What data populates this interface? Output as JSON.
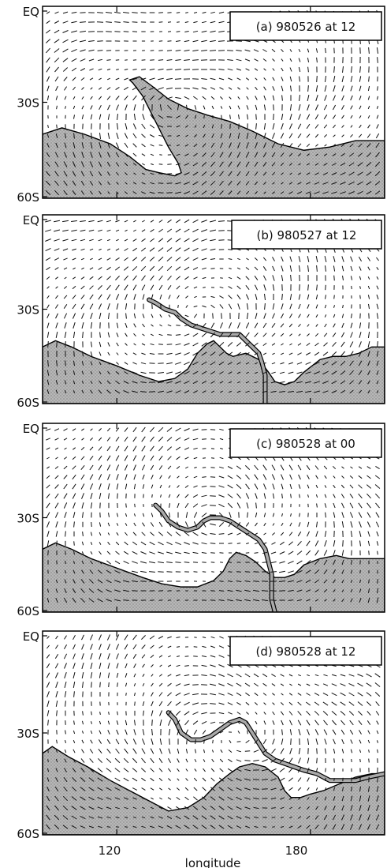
{
  "chart_data": {
    "type": "vector-field-panels",
    "xlabel": "longitude",
    "x_ticks": [
      120,
      180
    ],
    "y_ticks": [
      "EQ",
      "30S",
      "60S"
    ],
    "x_range": [
      97,
      203
    ],
    "y_range": [
      0,
      60
    ],
    "panels": [
      {
        "id": "a",
        "label": "(a) 980526 at 12",
        "boundary": [
          [
            97,
            40
          ],
          [
            103,
            38
          ],
          [
            110,
            40
          ],
          [
            118,
            43
          ],
          [
            124,
            47
          ],
          [
            129,
            51
          ],
          [
            133,
            52
          ],
          [
            138,
            53
          ],
          [
            140,
            52
          ],
          [
            139,
            49
          ],
          [
            136,
            44
          ],
          [
            132,
            36
          ],
          [
            128,
            28
          ],
          [
            125,
            24
          ],
          [
            124,
            23
          ],
          [
            127,
            22
          ],
          [
            131,
            25
          ],
          [
            136,
            29
          ],
          [
            142,
            32
          ],
          [
            148,
            34
          ],
          [
            155,
            36
          ],
          [
            162,
            39
          ],
          [
            170,
            43
          ],
          [
            178,
            45
          ],
          [
            186,
            44
          ],
          [
            194,
            42
          ],
          [
            203,
            42
          ]
        ]
      },
      {
        "id": "b",
        "label": "(b) 980527 at 12",
        "boundary": [
          [
            97,
            42
          ],
          [
            101,
            40
          ],
          [
            106,
            42
          ],
          [
            112,
            45
          ],
          [
            120,
            48
          ],
          [
            127,
            51
          ],
          [
            133,
            53
          ],
          [
            138,
            52
          ],
          [
            142,
            49
          ],
          [
            145,
            44
          ],
          [
            148,
            41
          ],
          [
            150,
            40
          ],
          [
            152,
            42
          ],
          [
            154,
            44
          ],
          [
            156,
            45
          ],
          [
            160,
            44
          ],
          [
            164,
            46
          ],
          [
            167,
            50
          ],
          [
            169,
            53
          ],
          [
            172,
            54
          ],
          [
            175,
            53
          ],
          [
            178,
            50
          ],
          [
            183,
            46
          ],
          [
            187,
            45
          ],
          [
            191,
            45
          ],
          [
            195,
            44
          ],
          [
            199,
            42
          ],
          [
            203,
            42
          ]
        ],
        "filament": [
          [
            130,
            27
          ],
          [
            132,
            28
          ],
          [
            135,
            30
          ],
          [
            138,
            31
          ],
          [
            140,
            33
          ],
          [
            143,
            35
          ],
          [
            146,
            36
          ],
          [
            149,
            37
          ],
          [
            152,
            38
          ],
          [
            155,
            38
          ],
          [
            158,
            38
          ],
          [
            160,
            40
          ],
          [
            162,
            42
          ],
          [
            164,
            44
          ],
          [
            165,
            47
          ],
          [
            166,
            51
          ],
          [
            166,
            55
          ],
          [
            166,
            59
          ],
          [
            166,
            63
          ]
        ]
      },
      {
        "id": "c",
        "label": "(c) 980528 at 00",
        "boundary": [
          [
            97,
            40
          ],
          [
            101,
            38
          ],
          [
            106,
            40
          ],
          [
            112,
            43
          ],
          [
            120,
            46
          ],
          [
            128,
            49
          ],
          [
            134,
            51
          ],
          [
            140,
            52
          ],
          [
            145,
            52
          ],
          [
            150,
            50
          ],
          [
            153,
            47
          ],
          [
            155,
            43
          ],
          [
            157,
            41
          ],
          [
            160,
            42
          ],
          [
            163,
            44
          ],
          [
            166,
            47
          ],
          [
            169,
            49
          ],
          [
            172,
            49
          ],
          [
            175,
            48
          ],
          [
            178,
            45
          ],
          [
            183,
            43
          ],
          [
            188,
            42
          ],
          [
            192,
            43
          ],
          [
            196,
            43
          ],
          [
            200,
            43
          ],
          [
            203,
            43
          ]
        ],
        "filament": [
          [
            132,
            26
          ],
          [
            134,
            28
          ],
          [
            136,
            31
          ],
          [
            139,
            33
          ],
          [
            142,
            34
          ],
          [
            145,
            33
          ],
          [
            147,
            31
          ],
          [
            149,
            30
          ],
          [
            152,
            30
          ],
          [
            155,
            31
          ],
          [
            158,
            33
          ],
          [
            161,
            35
          ],
          [
            164,
            37
          ],
          [
            166,
            40
          ],
          [
            167,
            44
          ],
          [
            168,
            48
          ],
          [
            168,
            52
          ],
          [
            168,
            56
          ],
          [
            169,
            60
          ],
          [
            170,
            64
          ]
        ]
      },
      {
        "id": "d",
        "label": "(d) 980528 at 12",
        "boundary": [
          [
            97,
            36
          ],
          [
            100,
            34
          ],
          [
            105,
            37
          ],
          [
            111,
            40
          ],
          [
            118,
            44
          ],
          [
            124,
            47
          ],
          [
            130,
            50
          ],
          [
            136,
            53
          ],
          [
            142,
            52
          ],
          [
            147,
            49
          ],
          [
            151,
            45
          ],
          [
            155,
            42
          ],
          [
            158,
            40
          ],
          [
            162,
            39
          ],
          [
            166,
            40
          ],
          [
            170,
            43
          ],
          [
            172,
            47
          ],
          [
            174,
            49
          ],
          [
            177,
            49
          ],
          [
            180,
            48
          ],
          [
            184,
            47
          ],
          [
            189,
            45
          ],
          [
            194,
            43
          ],
          [
            199,
            42
          ],
          [
            203,
            42
          ]
        ],
        "filament": [
          [
            136,
            24
          ],
          [
            138,
            26
          ],
          [
            140,
            30
          ],
          [
            143,
            32
          ],
          [
            146,
            32
          ],
          [
            149,
            31
          ],
          [
            152,
            29
          ],
          [
            155,
            27
          ],
          [
            158,
            26
          ],
          [
            160,
            27
          ],
          [
            162,
            30
          ],
          [
            164,
            33
          ],
          [
            166,
            36
          ],
          [
            169,
            38
          ],
          [
            172,
            39
          ],
          [
            175,
            40
          ],
          [
            178,
            41
          ],
          [
            182,
            42
          ],
          [
            186,
            44
          ],
          [
            190,
            44
          ],
          [
            194,
            44
          ],
          [
            198,
            43
          ],
          [
            203,
            42
          ]
        ]
      }
    ]
  },
  "colors": {
    "shade": "#a9a9a9",
    "ink": "#000000",
    "background": "#ffffff"
  }
}
